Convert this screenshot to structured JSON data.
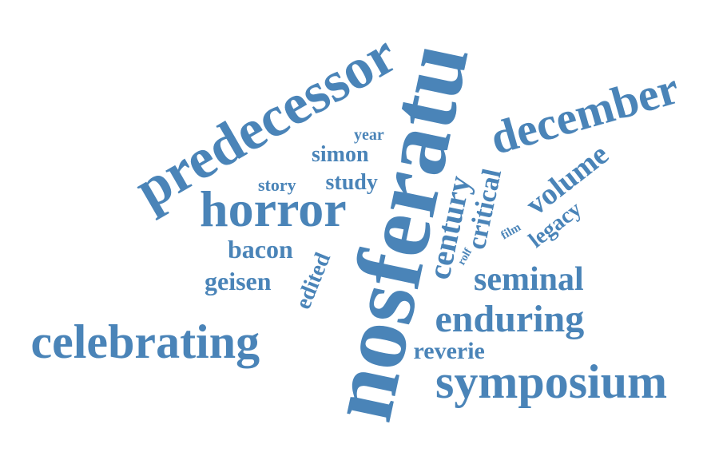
{
  "word_cloud": {
    "color": "#4a84b8",
    "words": [
      {
        "key": "nosferatu",
        "text": "nosferatu",
        "weight": 100
      },
      {
        "key": "predecessor",
        "text": "predecessor",
        "weight": 72
      },
      {
        "key": "december",
        "text": "december",
        "weight": 58
      },
      {
        "key": "horror",
        "text": "horror",
        "weight": 56
      },
      {
        "key": "celebrating",
        "text": "celebrating",
        "weight": 58
      },
      {
        "key": "symposium",
        "text": "symposium",
        "weight": 58
      },
      {
        "key": "enduring",
        "text": "enduring",
        "weight": 45
      },
      {
        "key": "seminal",
        "text": "seminal",
        "weight": 40
      },
      {
        "key": "reverie",
        "text": "reverie",
        "weight": 28
      },
      {
        "key": "century",
        "text": "century",
        "weight": 36
      },
      {
        "key": "critical",
        "text": "critical",
        "weight": 32
      },
      {
        "key": "volume",
        "text": "volume",
        "weight": 34
      },
      {
        "key": "legacy",
        "text": "legacy",
        "weight": 26
      },
      {
        "key": "edited",
        "text": "edited",
        "weight": 26
      },
      {
        "key": "geisen",
        "text": "geisen",
        "weight": 30
      },
      {
        "key": "bacon",
        "text": "bacon",
        "weight": 30
      },
      {
        "key": "study",
        "text": "study",
        "weight": 26
      },
      {
        "key": "story",
        "text": "story",
        "weight": 20
      },
      {
        "key": "simon",
        "text": "simon",
        "weight": 26
      },
      {
        "key": "year",
        "text": "year",
        "weight": 18
      },
      {
        "key": "film",
        "text": "film",
        "weight": 14
      },
      {
        "key": "rolf",
        "text": "rolf",
        "weight": 12
      }
    ]
  }
}
